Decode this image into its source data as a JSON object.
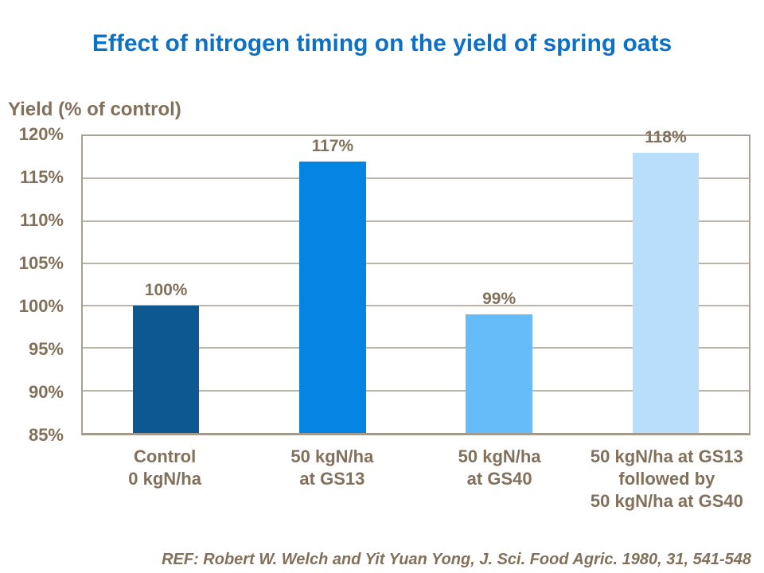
{
  "slide": {
    "title": "Effect of nitrogen timing on the yield of spring oats",
    "reference": "REF: Robert W. Welch and Yit Yuan Yong, J. Sci. Food Agric. 1980, 31, 541-548"
  },
  "colors": {
    "title_blue": "#0b70c6",
    "text_brown": "#82705a",
    "gridline": "#bdb4a9",
    "plot_border": "#a9a095"
  },
  "chart_data": {
    "type": "bar",
    "title": "Effect of nitrogen timing on the yield of spring oats",
    "ylabel": "Yield (% of control)",
    "xlabel": "",
    "categories": [
      "Control\n0 kgN/ha",
      "50 kgN/ha\nat GS13",
      "50 kgN/ha\nat GS40",
      "50 kgN/ha at GS13\nfollowed by\n50 kgN/ha at GS40"
    ],
    "values": [
      100,
      117,
      99,
      118
    ],
    "value_labels": [
      "100%",
      "117%",
      "99%",
      "118%"
    ],
    "ylim": [
      85,
      120
    ],
    "ytick_step": 5,
    "yticks": [
      "85%",
      "90%",
      "95%",
      "100%",
      "105%",
      "110%",
      "115%",
      "120%"
    ],
    "bar_colors": [
      "#0e5891",
      "#0684e4",
      "#66bbf9",
      "#b9defc"
    ],
    "grid": "on",
    "legend": "none",
    "annotation": "REF: Robert W. Welch and Yit Yuan Yong, J. Sci. Food Agric. 1980, 31, 541-548"
  }
}
